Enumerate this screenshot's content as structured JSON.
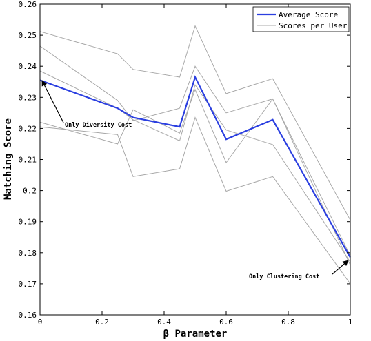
{
  "chart_data": {
    "type": "line",
    "xlabel": "β Parameter",
    "ylabel": "Matching Score",
    "xlim": [
      0,
      1
    ],
    "ylim": [
      0.16,
      0.26
    ],
    "x_ticks": [
      "0",
      "0.2",
      "0.4",
      "0.6",
      "0.8",
      "1"
    ],
    "y_ticks": [
      "0.16",
      "0.17",
      "0.18",
      "0.19",
      "0.2",
      "0.21",
      "0.22",
      "0.23",
      "0.24",
      "0.25",
      "0.26"
    ],
    "x": [
      0,
      0.25,
      0.3,
      0.45,
      0.5,
      0.6,
      0.75,
      1
    ],
    "grid": false,
    "legend_position": "top-right",
    "series": [
      {
        "name": "Average Score",
        "color": "#2b3fe0",
        "values": [
          0.2355,
          0.2265,
          0.2235,
          0.2205,
          0.2365,
          0.2165,
          0.2228,
          0.1785
        ]
      },
      {
        "name": "Scores per User",
        "color": "#a8a8a8",
        "users": [
          [
            0.2512,
            0.244,
            0.239,
            0.2365,
            0.253,
            0.2312,
            0.236,
            0.1905
          ],
          [
            0.2465,
            0.229,
            0.2225,
            0.2265,
            0.24,
            0.225,
            0.2295,
            0.179
          ],
          [
            0.2385,
            0.2265,
            0.2228,
            0.216,
            0.234,
            0.2195,
            0.2148,
            0.177
          ],
          [
            0.222,
            0.215,
            0.226,
            0.2185,
            0.2325,
            0.209,
            0.2295,
            0.176
          ],
          [
            0.2205,
            0.218,
            0.2045,
            0.207,
            0.2235,
            0.1998,
            0.2045,
            0.17
          ]
        ]
      }
    ],
    "annotations": [
      {
        "text": "Only Diversity Cost",
        "x": 0,
        "y": 0.2355
      },
      {
        "text": "Only Clustering Cost",
        "x": 1,
        "y": 0.1785
      }
    ]
  }
}
